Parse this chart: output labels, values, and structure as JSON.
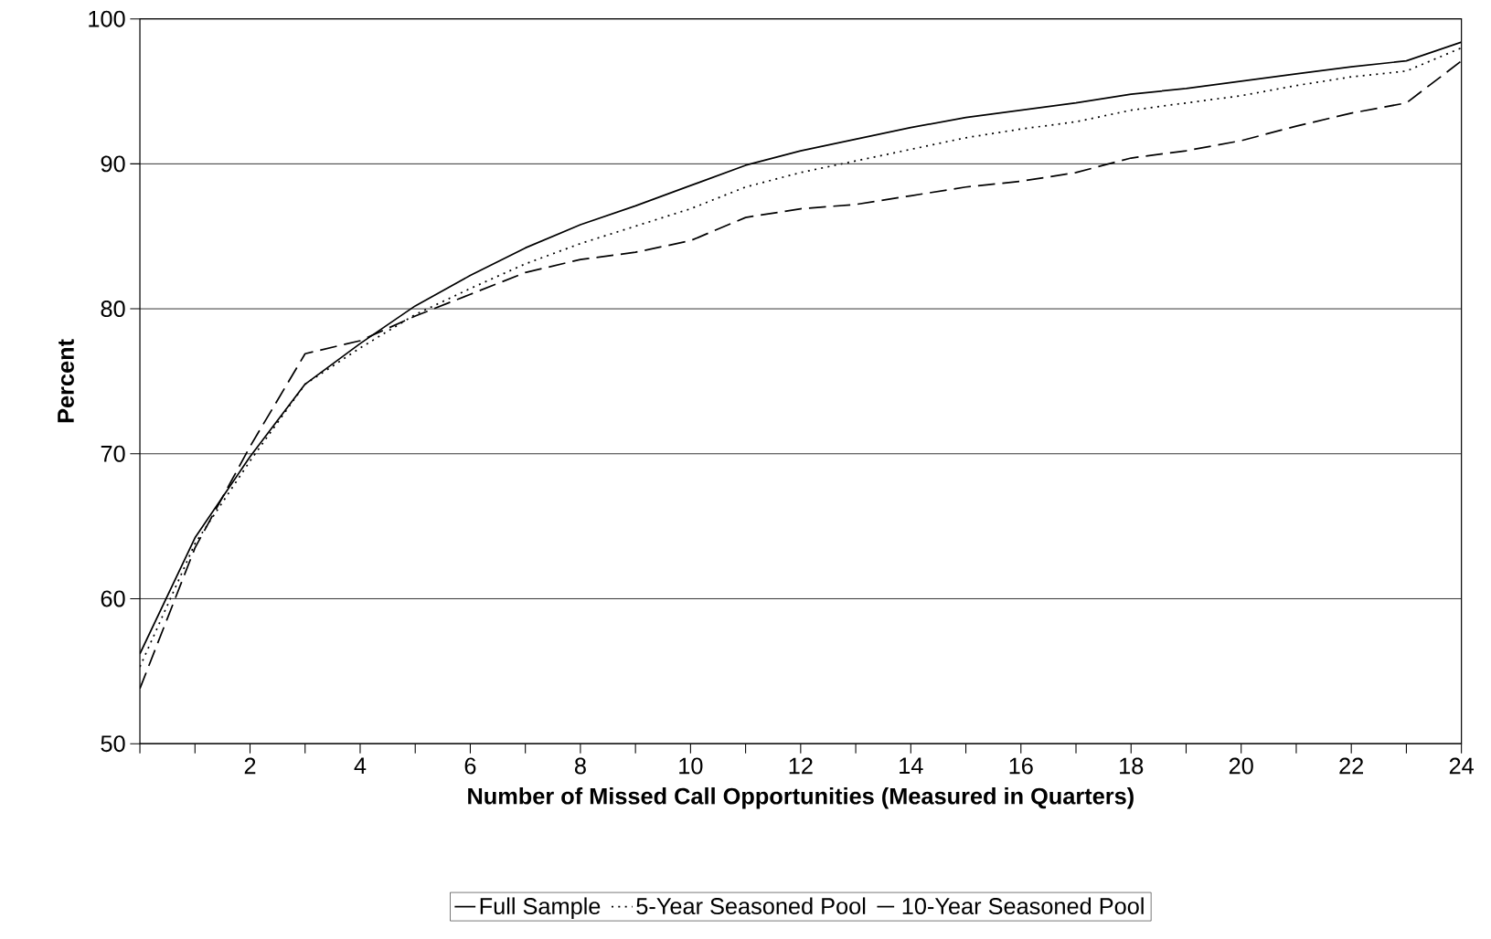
{
  "chart_data": {
    "type": "line",
    "xlabel": "Number of Missed Call Opportunities (Measured in Quarters)",
    "ylabel": "Percent",
    "x": [
      0,
      1,
      2,
      3,
      4,
      5,
      6,
      7,
      8,
      9,
      10,
      11,
      12,
      13,
      14,
      15,
      16,
      17,
      18,
      19,
      20,
      21,
      22,
      23,
      24
    ],
    "series": [
      {
        "name": "Full Sample",
        "color": "#000000",
        "line_style": "solid",
        "values": [
          56.2,
          64.2,
          69.8,
          74.8,
          77.6,
          80.2,
          82.3,
          84.2,
          85.8,
          87.1,
          88.5,
          89.9,
          90.9,
          91.7,
          92.5,
          93.2,
          93.7,
          94.2,
          94.8,
          95.2,
          95.7,
          96.2,
          96.7,
          97.1,
          98.4
        ]
      },
      {
        "name": "5-Year Seasoned Pool",
        "color": "#000000",
        "line_style": "dotted",
        "values": [
          55.3,
          63.8,
          69.5,
          74.8,
          77.3,
          79.6,
          81.4,
          83.1,
          84.5,
          85.7,
          86.9,
          88.4,
          89.4,
          90.2,
          91.0,
          91.8,
          92.4,
          92.9,
          93.7,
          94.2,
          94.7,
          95.4,
          96.0,
          96.4,
          98.0
        ]
      },
      {
        "name": "10-Year Seasoned Pool",
        "color": "#000000",
        "line_style": "dashed",
        "values": [
          53.8,
          63.5,
          70.5,
          76.9,
          77.8,
          79.5,
          81.0,
          82.5,
          83.4,
          83.9,
          84.7,
          86.3,
          86.9,
          87.2,
          87.8,
          88.4,
          88.8,
          89.4,
          90.4,
          90.9,
          91.6,
          92.6,
          93.5,
          94.2,
          97.1
        ]
      }
    ],
    "xlim": [
      0,
      24
    ],
    "xticks": [
      {
        "value": 0,
        "label": null
      },
      {
        "value": 1,
        "label": null
      },
      2,
      {
        "value": 3,
        "label": null
      },
      4,
      {
        "value": 5,
        "label": null
      },
      6,
      {
        "value": 7,
        "label": null
      },
      8,
      {
        "value": 9,
        "label": null
      },
      10,
      {
        "value": 11,
        "label": null
      },
      12,
      {
        "value": 13,
        "label": null
      },
      14,
      {
        "value": 15,
        "label": null
      },
      16,
      {
        "value": 17,
        "label": null
      },
      18,
      {
        "value": 19,
        "label": null
      },
      20,
      {
        "value": 21,
        "label": null
      },
      22,
      {
        "value": 23,
        "label": null
      },
      24
    ],
    "ylim": [
      50,
      100
    ],
    "yticks": [
      50,
      60,
      70,
      80,
      90,
      100
    ],
    "grid": "y",
    "legend": "bottom",
    "marker": "none"
  }
}
